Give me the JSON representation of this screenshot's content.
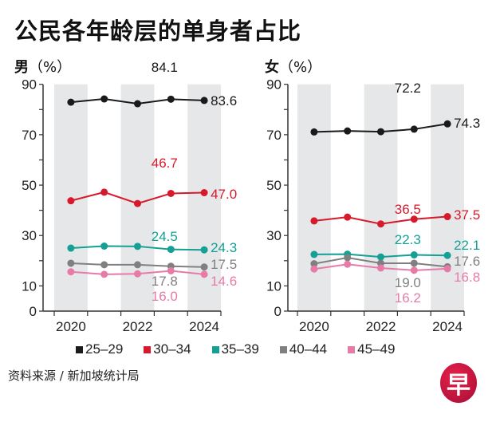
{
  "title": "公民各年龄层的单身者占比",
  "source": "资料来源 / 新加坡统计局",
  "logo_text": "早",
  "chart_data": [
    {
      "type": "line",
      "panel_label": "男",
      "unit": "（%）",
      "x": [
        "2020",
        "2021",
        "2022",
        "2023",
        "2024"
      ],
      "x_tick_labels": [
        "2020",
        "2022",
        "2024"
      ],
      "y_ticks": [
        0,
        10,
        30,
        50,
        70,
        90
      ],
      "ylim": [
        0,
        90
      ],
      "series": [
        {
          "name": "25–29",
          "color": "#1a1a1a",
          "values": [
            82.9,
            84.2,
            82.3,
            84.1,
            83.6
          ],
          "labels": [
            "84.1",
            "83.6"
          ]
        },
        {
          "name": "30–34",
          "color": "#d71a2b",
          "values": [
            43.8,
            47.2,
            42.7,
            46.7,
            47.0
          ],
          "labels": [
            "46.7",
            "47.0"
          ]
        },
        {
          "name": "35–39",
          "color": "#14a094",
          "values": [
            25.0,
            25.8,
            25.7,
            24.5,
            24.3
          ],
          "labels": [
            "24.5",
            "24.3"
          ]
        },
        {
          "name": "40–44",
          "color": "#808080",
          "values": [
            19.0,
            18.4,
            18.4,
            17.8,
            17.5
          ],
          "labels": [
            "17.8",
            "17.5"
          ]
        },
        {
          "name": "45–49",
          "color": "#e87aa8",
          "values": [
            15.6,
            14.6,
            14.8,
            16.0,
            14.6
          ],
          "labels": [
            "16.0",
            "14.6"
          ]
        }
      ]
    },
    {
      "type": "line",
      "panel_label": "女",
      "unit": "（%）",
      "x": [
        "2020",
        "2021",
        "2022",
        "2023",
        "2024"
      ],
      "x_tick_labels": [
        "2020",
        "2022",
        "2024"
      ],
      "y_ticks": [
        0,
        10,
        30,
        50,
        70,
        90
      ],
      "ylim": [
        0,
        90
      ],
      "series": [
        {
          "name": "25–29",
          "color": "#1a1a1a",
          "values": [
            71.1,
            71.5,
            71.2,
            72.2,
            74.3
          ],
          "labels": [
            "72.2",
            "74.3"
          ]
        },
        {
          "name": "30–34",
          "color": "#d71a2b",
          "values": [
            35.8,
            37.3,
            34.6,
            36.5,
            37.5
          ],
          "labels": [
            "36.5",
            "37.5"
          ]
        },
        {
          "name": "35–39",
          "color": "#14a094",
          "values": [
            22.5,
            22.6,
            21.5,
            22.3,
            22.1
          ],
          "labels": [
            "22.3",
            "22.1"
          ]
        },
        {
          "name": "40–44",
          "color": "#808080",
          "values": [
            18.8,
            21.2,
            19.0,
            19.0,
            17.6
          ],
          "labels": [
            "19.0",
            "17.6"
          ]
        },
        {
          "name": "45–49",
          "color": "#e87aa8",
          "values": [
            16.7,
            18.6,
            17.1,
            16.2,
            16.8
          ],
          "labels": [
            "16.2",
            "16.8"
          ]
        }
      ]
    }
  ],
  "legend": [
    {
      "label": "25–29",
      "color": "#1a1a1a"
    },
    {
      "label": "30–34",
      "color": "#d71a2b"
    },
    {
      "label": "35–39",
      "color": "#14a094"
    },
    {
      "label": "40–44",
      "color": "#808080"
    },
    {
      "label": "45–49",
      "color": "#e87aa8"
    }
  ]
}
